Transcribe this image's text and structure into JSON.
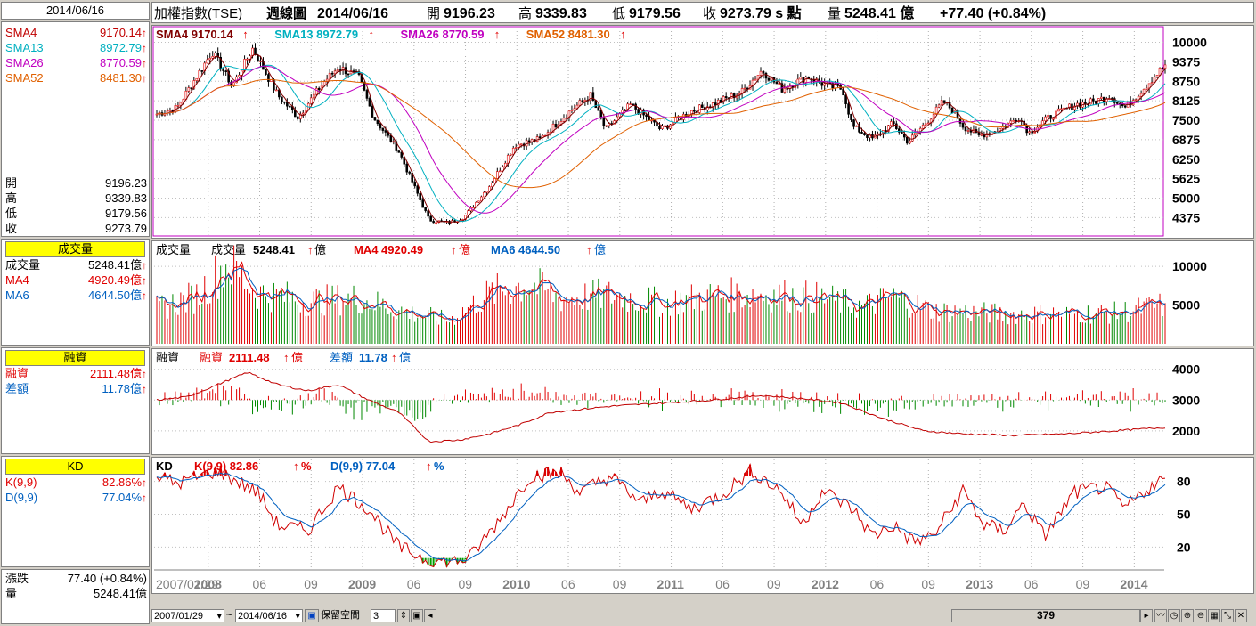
{
  "left": {
    "date": "2014/06/16",
    "sma": [
      {
        "label": "SMA4",
        "value": "9170.14",
        "color": "#c00000"
      },
      {
        "label": "SMA13",
        "value": "8972.79",
        "color": "#00b0c0"
      },
      {
        "label": "SMA26",
        "value": "8770.59",
        "color": "#c000c0"
      },
      {
        "label": "SMA52",
        "value": "8481.30",
        "color": "#e06000"
      }
    ],
    "ohlc": [
      {
        "label": "開",
        "value": "9196.23"
      },
      {
        "label": "高",
        "value": "9339.83"
      },
      {
        "label": "低",
        "value": "9179.56"
      },
      {
        "label": "收",
        "value": "9273.79"
      }
    ],
    "volume_header": "成交量",
    "volume": [
      {
        "label": "成交量",
        "value": "5248.41億",
        "color": "#000000"
      },
      {
        "label": "MA4",
        "value": "4920.49億",
        "color": "#e00000"
      },
      {
        "label": "MA6",
        "value": "4644.50億",
        "color": "#0060c0"
      }
    ],
    "margin_header": "融資",
    "margin": [
      {
        "label": "融資",
        "value": "2111.48億",
        "color": "#e00000"
      },
      {
        "label": "差額",
        "value": "11.78億",
        "color": "#0060c0"
      }
    ],
    "kd_header": "KD",
    "kd": [
      {
        "label": "K(9,9)",
        "value": "82.86%",
        "color": "#e00000"
      },
      {
        "label": "D(9,9)",
        "value": "77.04%",
        "color": "#0060c0"
      }
    ],
    "bottom": [
      {
        "label": "漲跌",
        "value": "77.40 (+0.84%)"
      },
      {
        "label": "量",
        "value": "5248.41億"
      }
    ]
  },
  "top_bar": {
    "name": "加權指數(TSE)",
    "period": "週線圖",
    "date": "2014/06/16",
    "open_label": "開",
    "open": "9196.23",
    "high_label": "高",
    "high": "9339.83",
    "low_label": "低",
    "low": "9179.56",
    "close_label": "收",
    "close": "9273.79 s 點",
    "vol_label": "量",
    "vol": "5248.41 億",
    "change": "+77.40 (+0.84%)"
  },
  "price_legend": [
    {
      "text": "SMA4 9170.14",
      "color": "#800000"
    },
    {
      "text": "SMA13 8972.79",
      "color": "#00b0c0"
    },
    {
      "text": "SMA26 8770.59",
      "color": "#c000c0"
    },
    {
      "text": "SMA52 8481.30",
      "color": "#e06000"
    }
  ],
  "vol_legend": {
    "title": "成交量",
    "label": "成交量",
    "value": "5248.41",
    "unit": "億",
    "ma4": "MA4 4920.49",
    "ma6": "MA6 4644.50"
  },
  "margin_legend": {
    "title": "融資",
    "label": "融資",
    "value": "2111.48",
    "unit": "億",
    "diff_label": "差額",
    "diff": "11.78"
  },
  "kd_legend": {
    "title": "KD",
    "k": "K(9,9) 82.86",
    "d": "D(9,9) 77.04",
    "pct": "%"
  },
  "chart_data": [
    {
      "type": "candlestick",
      "title": "加權指數(TSE) 週線圖",
      "y_ticks": [
        "10000",
        "9375",
        "8750",
        "8125",
        "7500",
        "6875",
        "6250",
        "5625",
        "5000",
        "4375"
      ],
      "ylim": [
        3900,
        10300
      ],
      "x_ticks": [
        "2007/01/29",
        "2008",
        "06",
        "09",
        "2009",
        "06",
        "09",
        "2010",
        "06",
        "09",
        "2011",
        "06",
        "09",
        "2012",
        "06",
        "09",
        "2013",
        "06",
        "09",
        "2014"
      ],
      "key_points": [
        {
          "date": "2007/01/29",
          "close": 7700
        },
        {
          "date": "2007/07",
          "close": 9700
        },
        {
          "date": "2007/10",
          "close": 9800
        },
        {
          "date": "2008/01",
          "close": 8000
        },
        {
          "date": "2008/05",
          "close": 9200
        },
        {
          "date": "2008/11",
          "close": 4300
        },
        {
          "date": "2009/01",
          "close": 4400
        },
        {
          "date": "2009/06",
          "close": 6700
        },
        {
          "date": "2010/01",
          "close": 8300
        },
        {
          "date": "2010/02",
          "close": 7200
        },
        {
          "date": "2010/10",
          "close": 8300
        },
        {
          "date": "2011/01",
          "close": 9100
        },
        {
          "date": "2011/04",
          "close": 8900
        },
        {
          "date": "2011/08",
          "close": 7300
        },
        {
          "date": "2011/12",
          "close": 6800
        },
        {
          "date": "2012/03",
          "close": 8100
        },
        {
          "date": "2012/06",
          "close": 7000
        },
        {
          "date": "2012/11",
          "close": 7300
        },
        {
          "date": "2013/05",
          "close": 8300
        },
        {
          "date": "2013/09",
          "close": 8200
        },
        {
          "date": "2014/06/16",
          "close": 9273.79
        }
      ]
    },
    {
      "type": "bar",
      "title": "成交量",
      "y_ticks": [
        "10000",
        "5000"
      ],
      "ylim": [
        0,
        13000
      ],
      "series": [
        {
          "name": "MA4"
        },
        {
          "name": "MA6"
        }
      ]
    },
    {
      "type": "line",
      "title": "融資",
      "y_ticks": [
        "4000",
        "3000",
        "2000"
      ],
      "ylim": [
        1300,
        4600
      ],
      "series": [
        {
          "name": "融資"
        },
        {
          "name": "差額"
        }
      ]
    },
    {
      "type": "line",
      "title": "KD",
      "y_ticks": [
        "80",
        "50",
        "20"
      ],
      "ylim": [
        0,
        100
      ],
      "series": [
        {
          "name": "K(9,9)",
          "last": 82.86
        },
        {
          "name": "D(9,9)",
          "last": 77.04
        }
      ]
    }
  ],
  "bottom_bar": {
    "from_date": "2007/01/29",
    "tilde": "~",
    "to_date": "2014/06/16",
    "reserve_label": "保留空間",
    "reserve_value": "3",
    "scroll_value": "379"
  },
  "colors": {
    "up": "#e00000",
    "down": "#008800",
    "accent_yellow": "#ffff00"
  }
}
